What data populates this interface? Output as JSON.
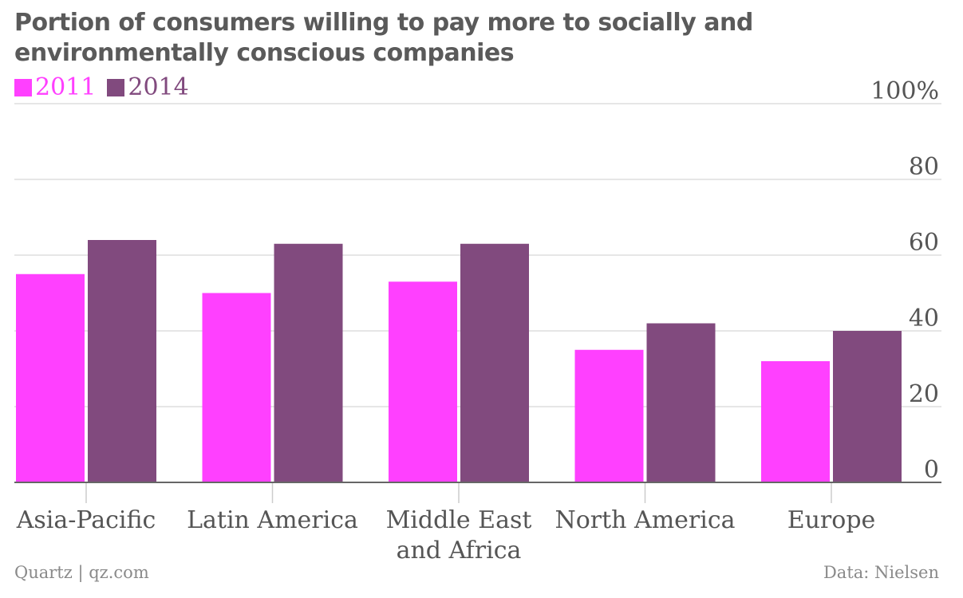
{
  "title": "Portion of consumers willing to pay more to socially and environmentally conscious companies",
  "footer": {
    "left": "Quartz | qz.com",
    "right": "Data: Nielsen"
  },
  "chart_data": {
    "type": "bar",
    "categories": [
      [
        "Asia-Pacific"
      ],
      [
        "Latin America"
      ],
      [
        "Middle East",
        "and Africa"
      ],
      [
        "North America"
      ],
      [
        "Europe"
      ]
    ],
    "series": [
      {
        "name": "2011",
        "color": "#ff40ff",
        "values": [
          55,
          50,
          53,
          35,
          32
        ]
      },
      {
        "name": "2014",
        "color": "#814a7e",
        "values": [
          64,
          63,
          63,
          42,
          40
        ]
      }
    ],
    "ylim": [
      0,
      100
    ],
    "yticks": [
      0,
      20,
      40,
      60,
      80,
      100
    ],
    "ytick_labels": [
      "0",
      "20",
      "40",
      "60",
      "80",
      "100%"
    ],
    "grid": true,
    "legend_position": "top-left",
    "xlabel": "",
    "ylabel": ""
  }
}
